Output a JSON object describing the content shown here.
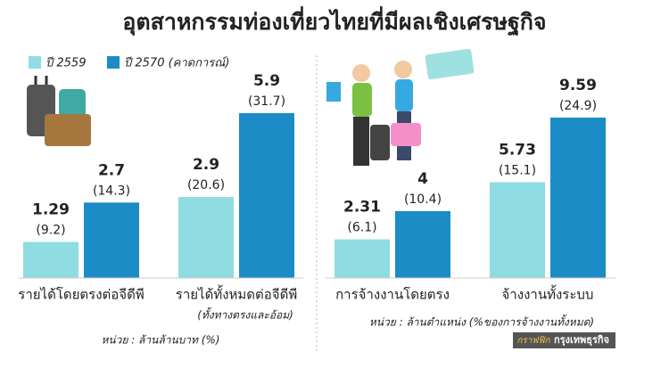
{
  "title": "อุตสาหกรรมท่องเที่ยวไทยที่มีผลเชิงเศรษฐกิจ",
  "credit": [
    "กราฟฟิก",
    "กรุงเทพธุรกิจ"
  ],
  "chart_data": [
    {
      "type": "bar",
      "categories": [
        "รายได้โดยตรงต่อจีดีพี",
        "รายได้ทั้งหมดต่อจีดีพี"
      ],
      "category_note": "(ทั้งทางตรงและอ้อม)",
      "unit_note": "หน่วย : ล้านล้านบาท (%)",
      "series": [
        {
          "name": "ปี 2559",
          "color": "#8fdde2",
          "values": [
            1.29,
            2.9
          ],
          "shares": [
            9.2,
            20.6
          ],
          "share_labels": [
            "(9.2)",
            "(20.6)"
          ]
        },
        {
          "name": "ปี 2570 (คาดการณ์)",
          "color": "#1c8cc6",
          "values": [
            2.7,
            5.9
          ],
          "shares": [
            14.3,
            31.7
          ],
          "share_labels": [
            "(14.3)",
            "(31.7)"
          ]
        }
      ]
    },
    {
      "type": "bar",
      "categories": [
        "การจ้างงานโดยตรง",
        "จ้างงานทั้งระบบ"
      ],
      "unit_note": "หน่วย : ล้านตำแหน่ง (%ของการจ้างงานทั้งหมด)",
      "series": [
        {
          "color": "#8fdde2",
          "values": [
            2.31,
            5.73
          ],
          "shares": [
            6.1,
            15.1
          ],
          "share_labels": [
            "(6.1)",
            "(15.1)"
          ]
        },
        {
          "color": "#1c8cc6",
          "values": [
            4,
            9.59
          ],
          "shares": [
            10.4,
            24.9
          ],
          "share_labels": [
            "(10.4)",
            "(24.9)"
          ]
        }
      ]
    }
  ]
}
